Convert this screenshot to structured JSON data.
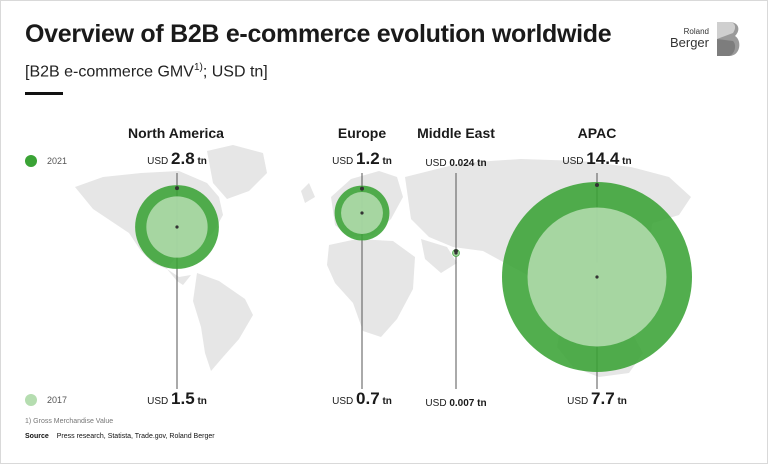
{
  "header": {
    "title": "Overview of B2B e-commerce evolution worldwide",
    "subtitle_main": "[B2B e-commerce GMV",
    "subtitle_sup": "1)",
    "subtitle_tail": "; USD tn]",
    "logo_roland": "Roland",
    "logo_berger": "Berger"
  },
  "legend": {
    "y2021": "2021",
    "y2017": "2017",
    "color_2021": "#3aa335",
    "color_2017": "#b5ddb0"
  },
  "chart_data": {
    "type": "bubble",
    "series": [
      {
        "name": "2021",
        "values": [
          2.8,
          1.2,
          0.024,
          14.4
        ]
      },
      {
        "name": "2017",
        "values": [
          1.5,
          0.7,
          0.007,
          7.7
        ]
      }
    ],
    "categories": [
      "North America",
      "Europe",
      "Middle East",
      "APAC"
    ],
    "currency": "USD",
    "unit": "tn"
  },
  "footer": {
    "footnote": "1) Gross Merchandise Value",
    "source_label": "Source",
    "source_text": "Press research, Statista, Trade.gov, Roland Berger"
  }
}
